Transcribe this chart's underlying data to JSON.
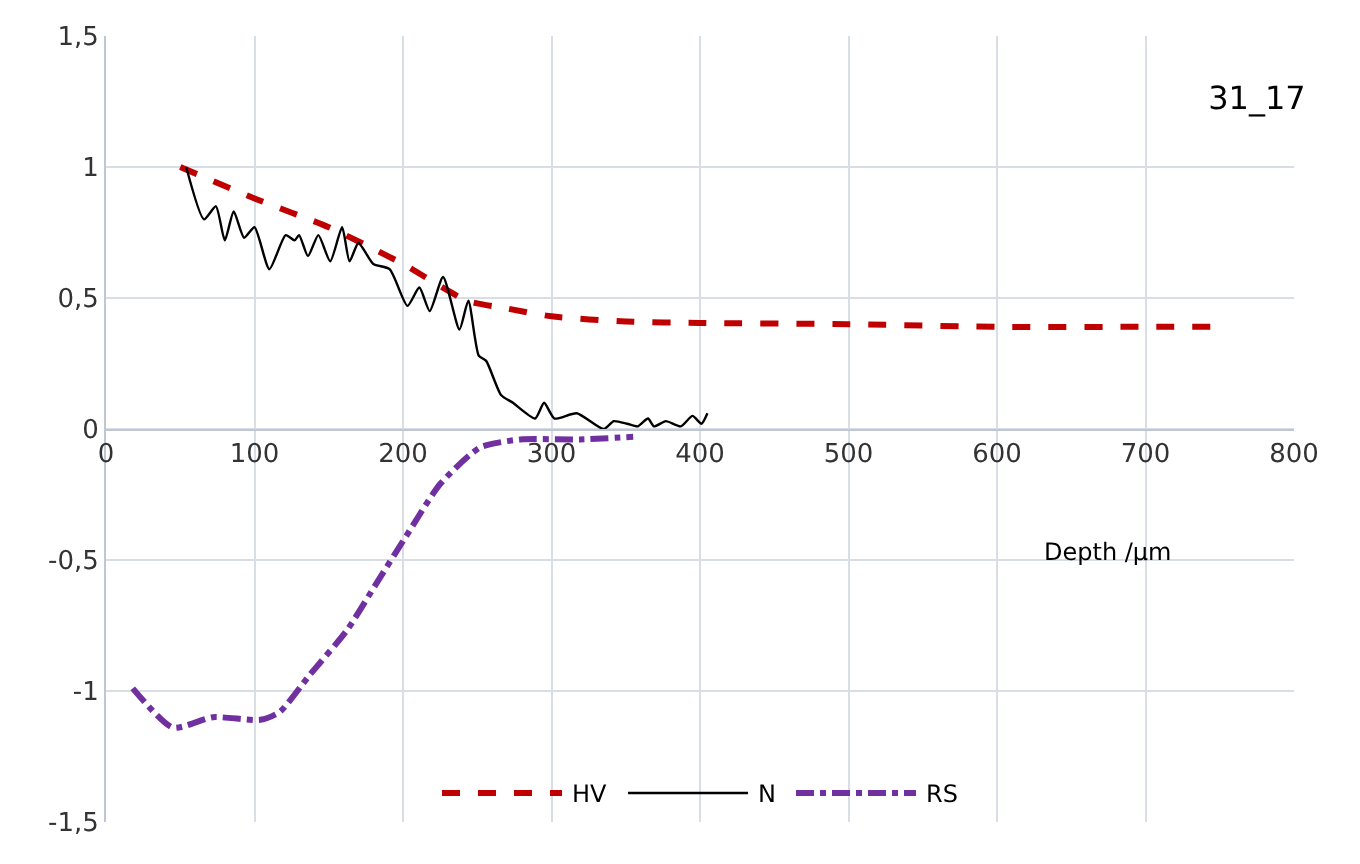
{
  "chart_data": {
    "type": "line",
    "title": "31_17",
    "xlabel": "Depth /µm",
    "xlim": [
      0,
      800
    ],
    "xticks": [
      0,
      100,
      200,
      300,
      400,
      500,
      600,
      700,
      800
    ],
    "ylim": [
      -1.5,
      1.5
    ],
    "yticks": [
      {
        "value": -1.5,
        "label": "-1,5"
      },
      {
        "value": -1,
        "label": "-1"
      },
      {
        "value": -0.5,
        "label": "-0,5"
      },
      0,
      {
        "value": 0.5,
        "label": "0,5"
      },
      1,
      {
        "value": 1.5,
        "label": "1,5"
      }
    ],
    "grid": true,
    "legend": "bottom",
    "marker": "none",
    "series": [
      {
        "name": "HV",
        "color": "#c00000",
        "line_style": "dashed",
        "x": [
          50,
          100,
          150,
          200,
          243,
          270,
          300,
          350,
          400,
          500,
          600,
          700,
          745
        ],
        "values": [
          1.0,
          0.88,
          0.77,
          0.63,
          0.49,
          0.46,
          0.43,
          0.41,
          0.405,
          0.4,
          0.39,
          0.39,
          0.39
        ]
      },
      {
        "name": "N",
        "color": "#000000",
        "line_style": "solid",
        "x": [
          54,
          66,
          74,
          80,
          86,
          93,
          100,
          110,
          121,
          127,
          130,
          136,
          143,
          151,
          159,
          164,
          170,
          180,
          191,
          203,
          211,
          218,
          227,
          238,
          244,
          251,
          256,
          266,
          274,
          289,
          295,
          302,
          317,
          335,
          342,
          351,
          358,
          365,
          369,
          377,
          387,
          395,
          401,
          405
        ],
        "values": [
          1.0,
          0.8,
          0.85,
          0.72,
          0.83,
          0.73,
          0.77,
          0.61,
          0.74,
          0.72,
          0.74,
          0.66,
          0.74,
          0.64,
          0.77,
          0.64,
          0.71,
          0.63,
          0.61,
          0.47,
          0.54,
          0.45,
          0.58,
          0.38,
          0.49,
          0.28,
          0.26,
          0.13,
          0.1,
          0.04,
          0.1,
          0.04,
          0.06,
          0.0,
          0.03,
          0.02,
          0.01,
          0.04,
          0.01,
          0.03,
          0.01,
          0.05,
          0.02,
          0.06
        ]
      },
      {
        "name": "RS",
        "color": "#7030a0",
        "line_style": "dashdot",
        "x": [
          18,
          45,
          72,
          104,
          117,
          137,
          162,
          182,
          202,
          225,
          252,
          279,
          319,
          355
        ],
        "values": [
          -0.99,
          -1.14,
          -1.1,
          -1.11,
          -1.08,
          -0.94,
          -0.77,
          -0.59,
          -0.41,
          -0.21,
          -0.07,
          -0.04,
          -0.04,
          -0.03
        ]
      }
    ]
  }
}
